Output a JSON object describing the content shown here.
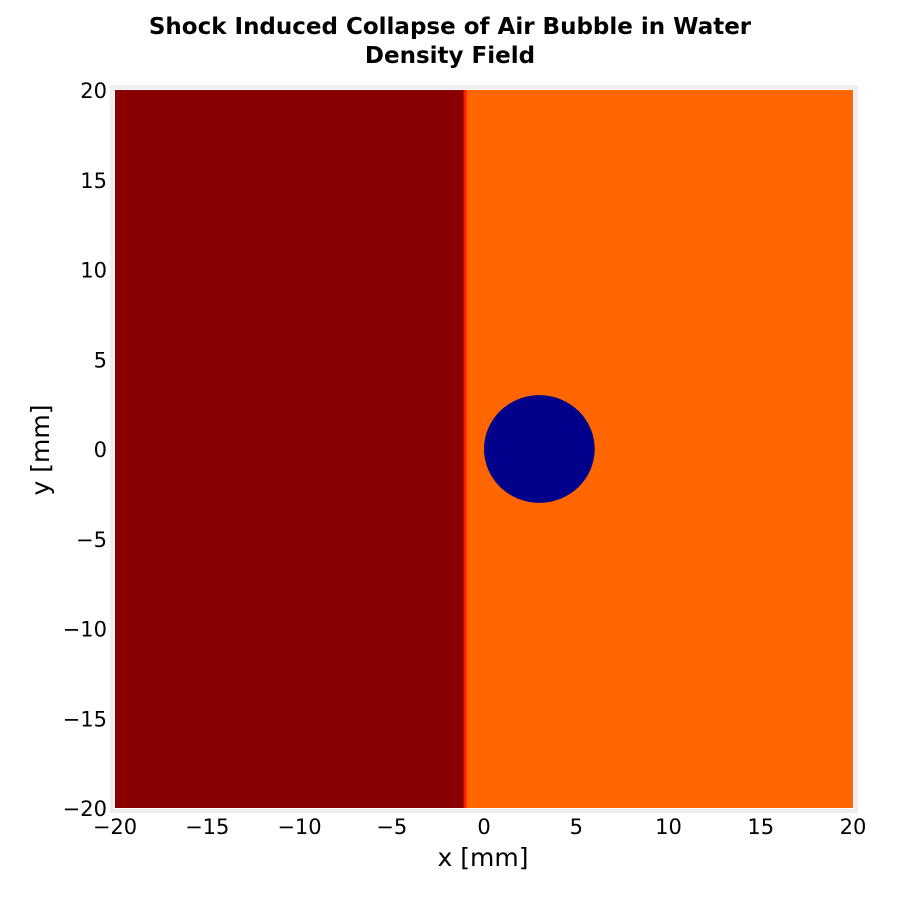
{
  "chart_data": {
    "type": "heatmap",
    "title": "Shock Induced Collapse of Air Bubble in Water",
    "subtitle": "Density Field",
    "xlabel": "x [mm]",
    "ylabel": "y [mm]",
    "xlim": [
      -20,
      20
    ],
    "ylim": [
      -20,
      20
    ],
    "xticks": [
      -20,
      -15,
      -10,
      -5,
      0,
      5,
      10,
      15,
      20
    ],
    "yticks": [
      -20,
      -15,
      -10,
      -5,
      0,
      5,
      10,
      15,
      20
    ],
    "xtick_labels": [
      "−20",
      "−15",
      "−10",
      "−5",
      "0",
      "5",
      "10",
      "15",
      "20"
    ],
    "ytick_labels": [
      "−20",
      "−15",
      "−10",
      "−5",
      "0",
      "5",
      "10",
      "15",
      "20"
    ],
    "grid": false,
    "regions": [
      {
        "kind": "band",
        "x": [
          -20,
          -1
        ],
        "color": "#8a0000"
      },
      {
        "kind": "band",
        "x": [
          -1,
          20
        ],
        "color": "#ff6600"
      },
      {
        "kind": "shock-front",
        "x": -1,
        "color": "#ff1a00"
      },
      {
        "kind": "circle",
        "center": [
          3,
          0
        ],
        "radius": 3,
        "color": "#00008a"
      }
    ]
  }
}
